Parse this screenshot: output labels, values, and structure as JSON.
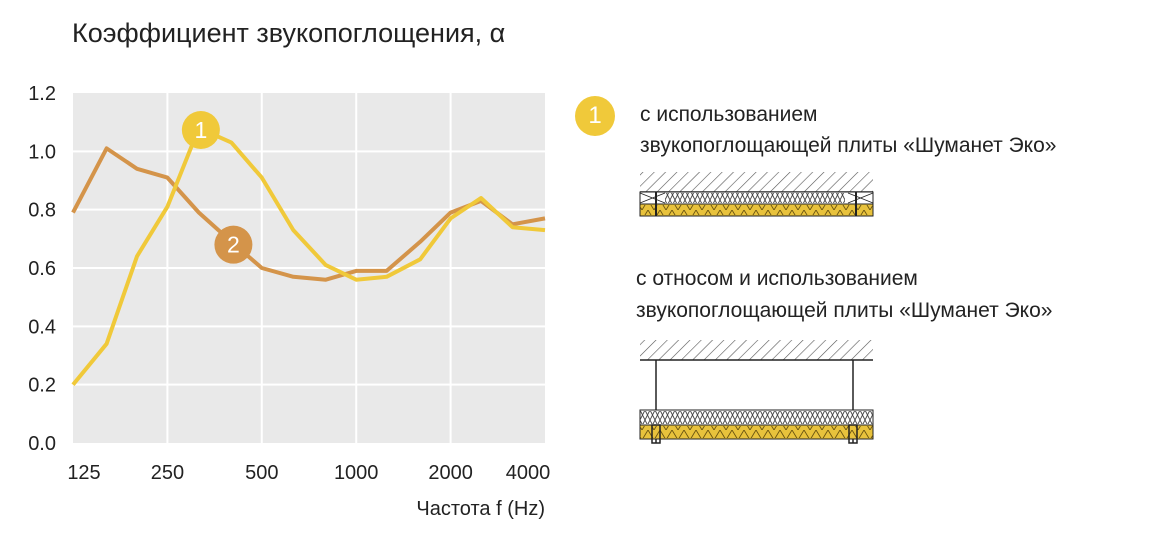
{
  "chart_data": {
    "type": "line",
    "title": "Коэффициент звукопоглощения, α",
    "xlabel": "Частота f (Hz)",
    "ylabel": "",
    "x_scale": "log2",
    "x": [
      125,
      160,
      200,
      250,
      315,
      400,
      500,
      630,
      800,
      1000,
      1250,
      1600,
      2000,
      2500,
      3150,
      4000
    ],
    "x_ticks": [
      "125",
      "250",
      "500",
      "1000",
      "2000",
      "4000"
    ],
    "x_tick_values": [
      125,
      250,
      500,
      1000,
      2000,
      4000
    ],
    "y_ticks": [
      "0.0",
      "0.2",
      "0.4",
      "0.6",
      "0.8",
      "1.0",
      "1.2"
    ],
    "ylim": [
      0,
      1.2
    ],
    "grid": true,
    "series": [
      {
        "name": "1",
        "color": "#f0c93a",
        "values": [
          0.2,
          0.34,
          0.64,
          0.81,
          1.08,
          1.03,
          0.91,
          0.73,
          0.61,
          0.56,
          0.57,
          0.63,
          0.77,
          0.84,
          0.74,
          0.73
        ]
      },
      {
        "name": "2",
        "color": "#d4944a",
        "values": [
          0.79,
          1.01,
          0.94,
          0.91,
          0.79,
          0.69,
          0.6,
          0.57,
          0.56,
          0.59,
          0.59,
          0.69,
          0.79,
          0.83,
          0.75,
          0.77
        ]
      }
    ]
  },
  "legend": [
    {
      "badge": "1",
      "color": "#f0c93a",
      "line1": "с использованием",
      "line2": "звукопоглощающей плиты «Шуманет Эко»"
    },
    {
      "badge": "",
      "color": "#d4944a",
      "line1": "с относом и использованием",
      "line2": "звукопоглощающей плиты «Шуманет Эко»"
    }
  ],
  "colors": {
    "plot_background": "#e9e9e9",
    "grid": "#ffffff",
    "insulation": "#e8c23c"
  }
}
